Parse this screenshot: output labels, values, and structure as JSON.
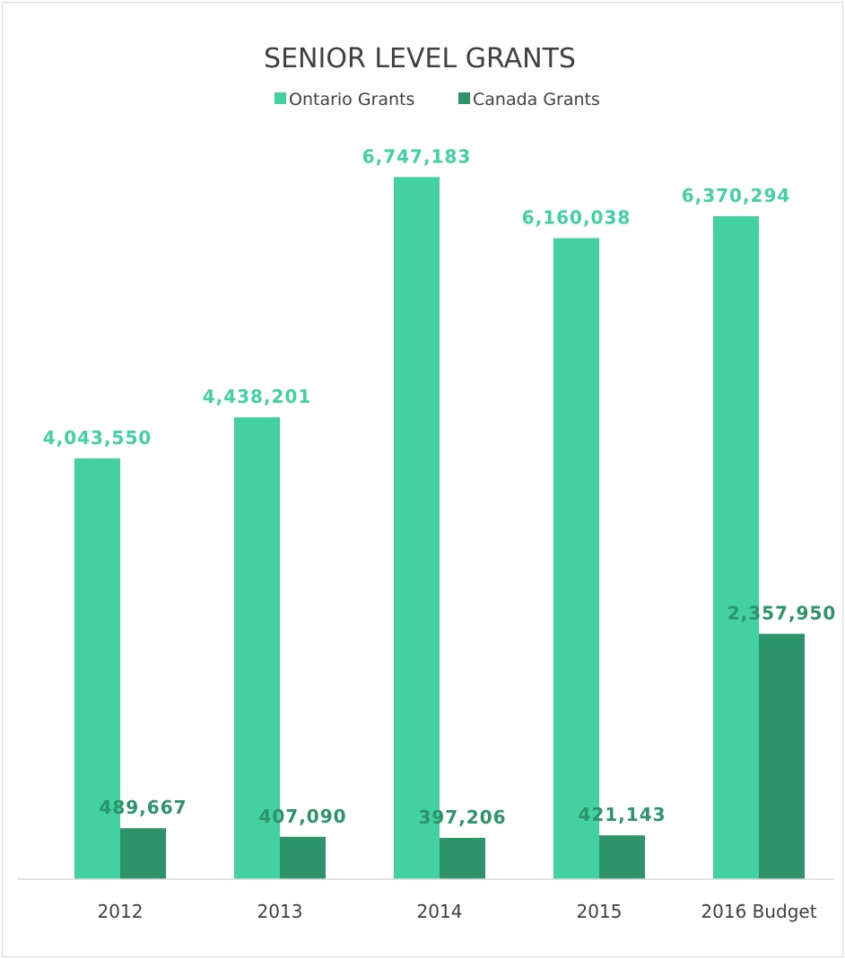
{
  "chart_data": {
    "type": "bar",
    "title": "SENIOR LEVEL GRANTS",
    "categories": [
      "2012",
      "2013",
      "2014",
      "2015",
      "2016 Budget"
    ],
    "series": [
      {
        "name": "Ontario Grants",
        "color": "#43d1a1",
        "values": [
          4043550,
          4438201,
          6747183,
          6160038,
          6370294
        ],
        "labels": [
          "4,043,550",
          "4,438,201",
          "6,747,183",
          "6,160,038",
          "6,370,294"
        ]
      },
      {
        "name": "Canada Grants",
        "color": "#2d9369",
        "values": [
          489667,
          407090,
          397206,
          421143,
          2357950
        ],
        "labels": [
          "489,667",
          "407,090",
          "397,206",
          "421,143",
          "2,357,950"
        ]
      }
    ],
    "ylim": [
      0,
      7500000
    ],
    "grid": false,
    "legend_position": "top"
  }
}
